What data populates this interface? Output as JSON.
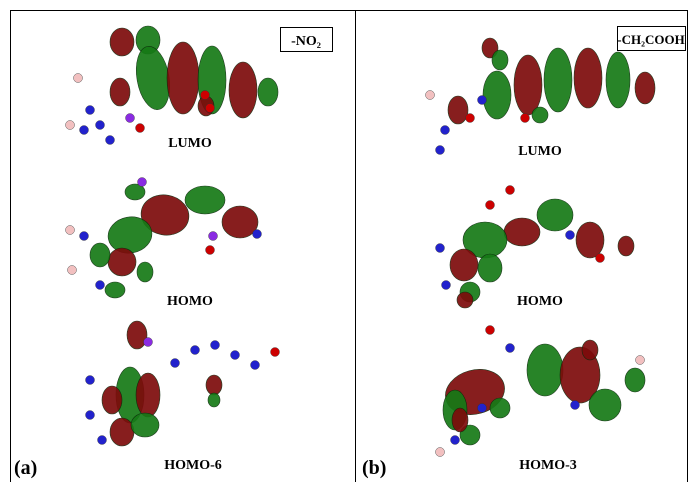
{
  "panels": [
    {
      "label": "(a)",
      "substituent": "-NO₂",
      "orbitals": [
        "LUMO",
        "HOMO",
        "HOMO-6"
      ]
    },
    {
      "label": "(b)",
      "substituent": "-CH₂COOH",
      "orbitals": [
        "LUMO",
        "HOMO",
        "HOMO-3"
      ]
    }
  ]
}
